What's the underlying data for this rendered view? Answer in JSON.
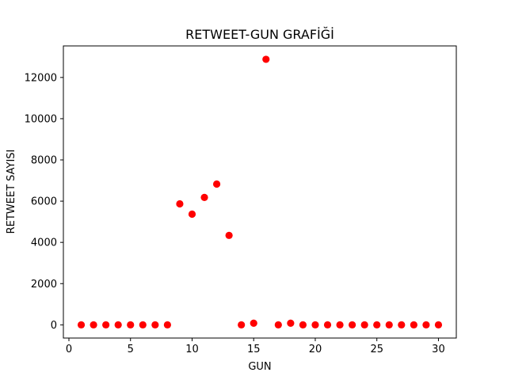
{
  "chart_data": {
    "type": "scatter",
    "title": "RETWEET-GUN GRAFİĞİ",
    "xlabel": "GUN",
    "ylabel": "RETWEET SAYISI",
    "xlim": [
      -0.45,
      31.45
    ],
    "ylim": [
      -640,
      13530
    ],
    "xticks": [
      0,
      5,
      10,
      15,
      20,
      25,
      30
    ],
    "yticks": [
      0,
      2000,
      4000,
      6000,
      8000,
      10000,
      12000
    ],
    "marker_color": "#ff0000",
    "grid": false,
    "legend": "none",
    "series": [
      {
        "x": [
          1,
          2,
          3,
          4,
          5,
          6,
          7,
          8,
          9,
          10,
          11,
          12,
          13,
          14,
          15,
          16,
          17,
          18,
          19,
          20,
          21,
          22,
          23,
          24,
          25,
          26,
          27,
          28,
          29,
          30
        ],
        "y": [
          0,
          0,
          0,
          0,
          0,
          0,
          0,
          0,
          5870,
          5370,
          6180,
          6830,
          4340,
          0,
          80,
          12880,
          0,
          80,
          0,
          0,
          0,
          0,
          0,
          0,
          0,
          0,
          0,
          0,
          0,
          0
        ]
      }
    ]
  }
}
